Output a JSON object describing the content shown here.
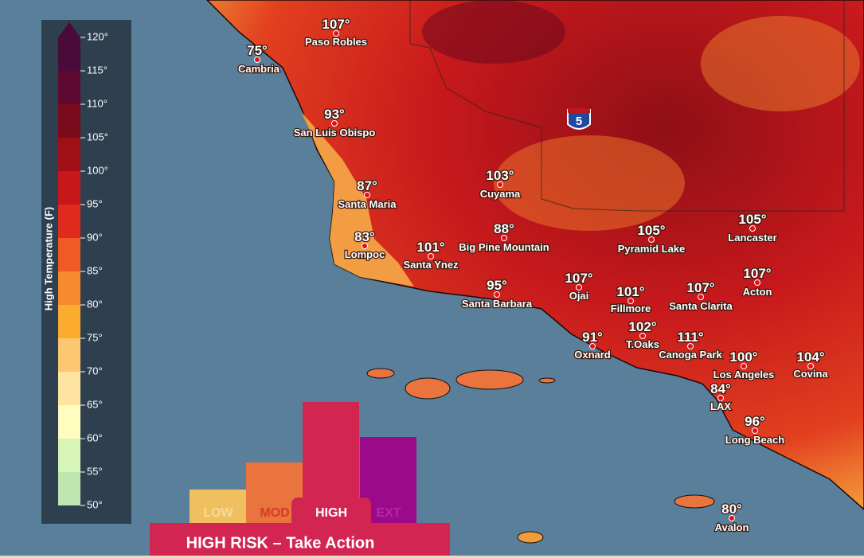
{
  "legend": {
    "title": "High Temperature (F)",
    "ticks": [
      "120°",
      "115°",
      "110°",
      "105°",
      "100°",
      "95°",
      "90°",
      "85°",
      "80°",
      "75°",
      "70°",
      "65°",
      "60°",
      "55°",
      "50°"
    ]
  },
  "interstate": "5",
  "cities": [
    {
      "temp": "107°",
      "name": "Paso Robles"
    },
    {
      "temp": "75°",
      "name": "Cambria"
    },
    {
      "temp": "93°",
      "name": "San Luis Obispo"
    },
    {
      "temp": "103°",
      "name": "Cuyama"
    },
    {
      "temp": "87°",
      "name": "Santa Maria"
    },
    {
      "temp": "83°",
      "name": "Lompoc"
    },
    {
      "temp": "101°",
      "name": "Santa Ynez"
    },
    {
      "temp": "88°",
      "name": "Big Pine Mountain"
    },
    {
      "temp": "95°",
      "name": "Santa Barbara"
    },
    {
      "temp": "105°",
      "name": "Pyramid Lake"
    },
    {
      "temp": "105°",
      "name": "Lancaster"
    },
    {
      "temp": "107°",
      "name": "Ojai"
    },
    {
      "temp": "101°",
      "name": "Fillmore"
    },
    {
      "temp": "107°",
      "name": "Santa Clarita"
    },
    {
      "temp": "107°",
      "name": "Acton"
    },
    {
      "temp": "91°",
      "name": "Oxnard"
    },
    {
      "temp": "102°",
      "name": "T.Oaks"
    },
    {
      "temp": "111°",
      "name": "Canoga Park"
    },
    {
      "temp": "100°",
      "name": "Los Angeles"
    },
    {
      "temp": "104°",
      "name": "Covina"
    },
    {
      "temp": "84°",
      "name": "LAX"
    },
    {
      "temp": "96°",
      "name": "Long Beach"
    },
    {
      "temp": "80°",
      "name": "Avalon"
    }
  ],
  "risk": {
    "levels": [
      "LOW",
      "MOD",
      "HIGH",
      "EXT"
    ],
    "banner": "HIGH RISK – Take Action"
  }
}
